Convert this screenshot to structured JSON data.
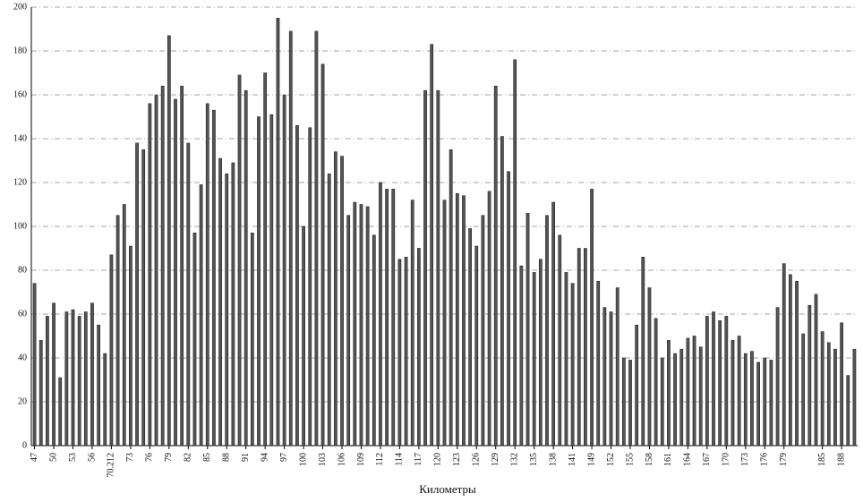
{
  "chart_data": {
    "type": "bar",
    "x_label": "Километры",
    "categories": [
      "47",
      null,
      null,
      "50",
      null,
      null,
      "53",
      null,
      null,
      "56",
      null,
      null,
      "70.212",
      null,
      null,
      "73",
      null,
      null,
      "76",
      null,
      null,
      "79",
      null,
      null,
      "82",
      null,
      null,
      "85",
      null,
      null,
      "88",
      null,
      null,
      "91",
      null,
      null,
      "94",
      null,
      null,
      "97",
      null,
      null,
      "100",
      null,
      null,
      "103",
      null,
      null,
      "106",
      null,
      null,
      "109",
      null,
      null,
      "112",
      null,
      null,
      "114",
      null,
      null,
      "117",
      null,
      null,
      "120",
      null,
      null,
      "123",
      null,
      null,
      "126",
      null,
      null,
      "129",
      null,
      null,
      "132",
      null,
      null,
      "135",
      null,
      null,
      "138",
      null,
      null,
      "141",
      null,
      null,
      "149",
      null,
      null,
      "152",
      null,
      null,
      "155",
      null,
      null,
      "158",
      null,
      null,
      "161",
      null,
      null,
      "164",
      null,
      null,
      "167",
      null,
      null,
      "170",
      null,
      null,
      "173",
      null,
      null,
      "176",
      null,
      null,
      "179",
      null,
      null,
      null,
      null,
      null,
      "185",
      null,
      null,
      "188",
      null,
      null
    ],
    "values": [
      74,
      48,
      59,
      65,
      31,
      61,
      62,
      59,
      61,
      65,
      55,
      42,
      87,
      105,
      110,
      91,
      138,
      135,
      156,
      160,
      164,
      187,
      158,
      164,
      138,
      97,
      119,
      156,
      153,
      131,
      124,
      129,
      169,
      162,
      97,
      150,
      170,
      151,
      195,
      160,
      189,
      146,
      100,
      145,
      189,
      174,
      124,
      134,
      132,
      105,
      111,
      110,
      109,
      96,
      120,
      117,
      117,
      85,
      86,
      112,
      90,
      162,
      183,
      162,
      112,
      135,
      115,
      114,
      99,
      91,
      105,
      116,
      164,
      141,
      125,
      176,
      82,
      106,
      79,
      85,
      105,
      111,
      96,
      79,
      74,
      90,
      90,
      117,
      75,
      63,
      61,
      72,
      40,
      39,
      55,
      86,
      72,
      58,
      40,
      48,
      42,
      44,
      49,
      50,
      45,
      59,
      61,
      57,
      59,
      48,
      50,
      42,
      43,
      38,
      40,
      39,
      63,
      83,
      78,
      75,
      51,
      64,
      69,
      52,
      47,
      44,
      56,
      32,
      44
    ],
    "color": "#555555",
    "ylim": [
      0,
      200
    ],
    "yticks": [
      0,
      20,
      40,
      60,
      80,
      100,
      120,
      140,
      160,
      180,
      200
    ],
    "grid": true
  }
}
